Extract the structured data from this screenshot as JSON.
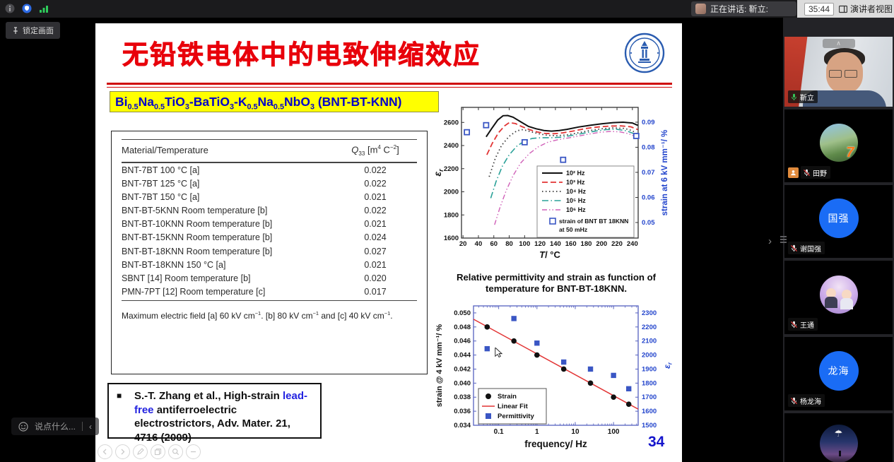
{
  "top_bar": {
    "speaking_label": "正在讲话: 靳立:",
    "timer": "35:44",
    "view_button_label": "演讲者视图"
  },
  "stage": {
    "pin_button_label": "锁定画面",
    "chat_placeholder": "说点什么...",
    "chat_collapse": "‹",
    "sidebar_collapse": "›"
  },
  "slide": {
    "title": "无铅铁电体中的电致伸缩效应",
    "formula": "Bi~0.5~Na~0.5~TiO~3~-BaTiO~3~-K~0.5~Na~0.5~NbO~3~ (BNT-BT-KNN)",
    "table": {
      "headers": [
        "Material/Temperature",
        "*Q*~33~ [m^4^ C^−2^]"
      ],
      "rows": [
        [
          "BNT-7BT 100 °C [a]",
          "0.022"
        ],
        [
          "BNT-7BT 125 °C [a]",
          "0.022"
        ],
        [
          "BNT-7BT 150 °C [a]",
          "0.021"
        ],
        [
          "BNT-BT-5KNN Room temperature [b]",
          "0.022"
        ],
        [
          "BNT-BT-10KNN Room temperature [b]",
          "0.021"
        ],
        [
          "BNT-BT-15KNN Room temperature [b]",
          "0.024"
        ],
        [
          "BNT-BT-18KNN Room temperature [b]",
          "0.027"
        ],
        [
          "BNT-BT-18KNN 150 °C [a]",
          "0.021"
        ],
        [
          "SBNT [14] Room temperature [b]",
          "0.020"
        ],
        [
          "PMN-7PT [12] Room temperature [c]",
          "0.017"
        ]
      ],
      "footnote": "Maximum electric field [a] 60 kV cm^−1^. [b] 80 kV cm^−1^ and [c] 40 kV cm^−1^."
    },
    "citation": {
      "bullet": "■",
      "pre": "S.-T. Zhang et al., High-strain ",
      "highlight": "lead-free",
      "post": " antiferroelectric electrostrictors, Adv. Mater. 21, 4716 (2009)"
    },
    "chart1_caption": "Relative permittivity and strain as function of temperature for BNT-BT-18KNN.",
    "page_number": "34"
  },
  "participants": [
    {
      "name": "靳立",
      "mic": "on",
      "type": "video",
      "active": true
    },
    {
      "name": "田野",
      "mic": "muted",
      "type": "avatar",
      "avatar": "ph7",
      "badge": true
    },
    {
      "name": "谢国强",
      "mic": "muted",
      "type": "avatar",
      "avatar": "blue",
      "avatar_label": "国强"
    },
    {
      "name": "王通",
      "mic": "muted",
      "type": "avatar",
      "avatar": "phf"
    },
    {
      "name": "杨龙海",
      "mic": "muted",
      "type": "avatar",
      "avatar": "blue",
      "avatar_label": "龙海"
    },
    {
      "name": "",
      "mic": "none",
      "type": "avatar",
      "avatar": "phn"
    }
  ],
  "chart_data": [
    {
      "type": "line",
      "xlabel": "T|/ °C",
      "ylabel_left": "ε_r",
      "ylabel_right": "strain at 6 kV mm⁻¹/ %",
      "xlim": [
        18,
        247.5
      ],
      "xticks": [
        20,
        40,
        60,
        80,
        100,
        120,
        140,
        160,
        180,
        200,
        220,
        240
      ],
      "ylim_left": [
        1600,
        2730
      ],
      "yticks_left": [
        1600,
        1800,
        2000,
        2200,
        2400,
        2600
      ],
      "ylim_right": [
        0.0438,
        0.0959
      ],
      "yticks_right": [
        0.05,
        0.06,
        0.07,
        0.08,
        0.09
      ],
      "axis_color_left": "#111111",
      "axis_color_right": "#2244cc",
      "series": [
        {
          "name": "10² Hz",
          "color": "#111111",
          "dash": "",
          "width": 2,
          "points": [
            [
              50,
              2475
            ],
            [
              57,
              2545
            ],
            [
              65,
              2620
            ],
            [
              72,
              2658
            ],
            [
              78,
              2660
            ],
            [
              85,
              2645
            ],
            [
              95,
              2605
            ],
            [
              105,
              2565
            ],
            [
              115,
              2545
            ],
            [
              125,
              2530
            ],
            [
              135,
              2525
            ],
            [
              145,
              2530
            ],
            [
              155,
              2540
            ],
            [
              170,
              2560
            ],
            [
              185,
              2575
            ],
            [
              200,
              2588
            ],
            [
              215,
              2598
            ],
            [
              228,
              2602
            ],
            [
              240,
              2595
            ],
            [
              247,
              2575
            ]
          ]
        },
        {
          "name": "10³ Hz",
          "color": "#e23434",
          "dash": "8 4",
          "width": 1.8,
          "points": [
            [
              51,
              2320
            ],
            [
              58,
              2420
            ],
            [
              66,
              2510
            ],
            [
              74,
              2570
            ],
            [
              80,
              2598
            ],
            [
              88,
              2590
            ],
            [
              96,
              2565
            ],
            [
              106,
              2538
            ],
            [
              116,
              2518
            ],
            [
              126,
              2505
            ],
            [
              138,
              2502
            ],
            [
              150,
              2510
            ],
            [
              165,
              2528
            ],
            [
              180,
              2548
            ],
            [
              195,
              2560
            ],
            [
              210,
              2568
            ],
            [
              225,
              2570
            ],
            [
              238,
              2562
            ],
            [
              247,
              2538
            ]
          ]
        },
        {
          "name": "10⁴ Hz",
          "color": "#3a3a3a",
          "dash": "1.5 3.5",
          "width": 1.8,
          "points": [
            [
              54,
              2130
            ],
            [
              62,
              2290
            ],
            [
              70,
              2400
            ],
            [
              80,
              2480
            ],
            [
              90,
              2528
            ],
            [
              98,
              2538
            ],
            [
              108,
              2520
            ],
            [
              118,
              2502
            ],
            [
              130,
              2488
            ],
            [
              142,
              2485
            ],
            [
              155,
              2492
            ],
            [
              170,
              2510
            ],
            [
              185,
              2530
            ],
            [
              200,
              2545
            ],
            [
              215,
              2552
            ],
            [
              230,
              2548
            ],
            [
              240,
              2528
            ],
            [
              247,
              2495
            ]
          ]
        },
        {
          "name": "10⁵ Hz",
          "color": "#2aa198",
          "dash": "9 3.5 1.5 3.5",
          "width": 1.6,
          "points": [
            [
              56,
              1945
            ],
            [
              63,
              2090
            ],
            [
              71,
              2220
            ],
            [
              80,
              2320
            ],
            [
              90,
              2395
            ],
            [
              100,
              2440
            ],
            [
              110,
              2462
            ],
            [
              122,
              2468
            ],
            [
              135,
              2468
            ],
            [
              148,
              2472
            ],
            [
              162,
              2488
            ],
            [
              178,
              2508
            ],
            [
              192,
              2525
            ],
            [
              206,
              2538
            ],
            [
              220,
              2540
            ],
            [
              232,
              2528
            ],
            [
              241,
              2505
            ],
            [
              247,
              2465
            ]
          ]
        },
        {
          "name": "10⁶ Hz",
          "color": "#d060b8",
          "dash": "7 3 1.5 3 1.5 3",
          "width": 1.4,
          "points": [
            [
              61,
              1715
            ],
            [
              68,
              1865
            ],
            [
              76,
              2010
            ],
            [
              85,
              2140
            ],
            [
              95,
              2250
            ],
            [
              106,
              2330
            ],
            [
              118,
              2390
            ],
            [
              130,
              2428
            ],
            [
              143,
              2450
            ],
            [
              156,
              2465
            ],
            [
              170,
              2482
            ],
            [
              184,
              2500
            ],
            [
              198,
              2515
            ],
            [
              212,
              2522
            ],
            [
              224,
              2518
            ],
            [
              235,
              2502
            ],
            [
              243,
              2482
            ],
            [
              247,
              2462
            ]
          ]
        }
      ],
      "scatter": {
        "name_lines": [
          "strain of BNT BT 18KNN",
          "at 50 mHz"
        ],
        "color": "#3a56c4",
        "points": [
          [
            25,
            0.086
          ],
          [
            50,
            0.0888
          ],
          [
            100,
            0.082
          ],
          [
            150,
            0.075
          ],
          [
            245,
            0.0845
          ]
        ]
      }
    },
    {
      "type": "scatter",
      "xscale": "log",
      "xlabel": "frequency/ Hz",
      "ylabel_left": "strain @ 4 kV mm⁻¹/ %",
      "ylabel_right": "ε_r",
      "xlim": [
        0.022,
        440
      ],
      "xticks": [
        0.1,
        1,
        10,
        100
      ],
      "ylim_left": [
        0.034,
        0.051
      ],
      "yticks_left": [
        0.034,
        0.036,
        0.038,
        0.04,
        0.042,
        0.044,
        0.046,
        0.048,
        0.05
      ],
      "ylim_right": [
        1500,
        2350
      ],
      "yticks_right": [
        1500,
        1600,
        1700,
        1800,
        1900,
        2000,
        2100,
        2200,
        2300
      ],
      "frame_color": "#5560c0",
      "axis_color_left": "#111111",
      "axis_color_right": "#2244cc",
      "strain": {
        "name": "Strain",
        "color": "#111111",
        "points": [
          [
            0.05,
            0.048
          ],
          [
            0.25,
            0.046
          ],
          [
            1,
            0.044
          ],
          [
            5,
            0.042
          ],
          [
            25,
            0.04
          ],
          [
            100,
            0.038
          ],
          [
            250,
            0.037
          ]
        ]
      },
      "fit": {
        "name": "Linear Fit",
        "color": "#e23434",
        "x": [
          0.022,
          440
        ],
        "y": [
          0.0491,
          0.0363
        ]
      },
      "permittivity": {
        "name": "Permittivity",
        "color": "#3a56c4",
        "points": [
          [
            0.05,
            2045
          ],
          [
            0.25,
            2260
          ],
          [
            1,
            2085
          ],
          [
            5,
            1950
          ],
          [
            25,
            1900
          ],
          [
            100,
            1855
          ],
          [
            250,
            1760
          ]
        ]
      }
    }
  ]
}
